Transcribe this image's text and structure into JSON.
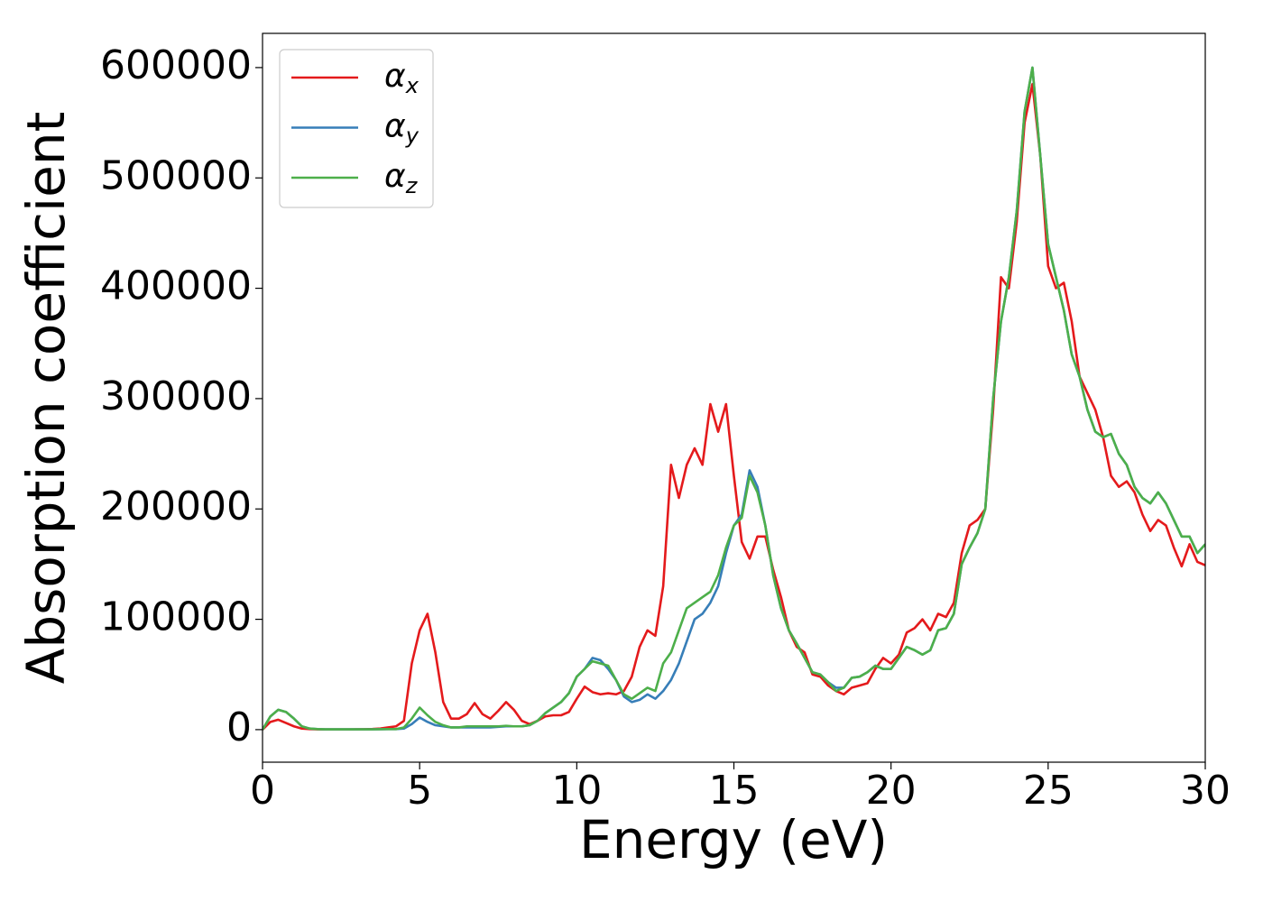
{
  "chart_data": {
    "type": "line",
    "xlabel": "Energy (eV)",
    "ylabel": "Absorption coefficient",
    "x": [
      0,
      0.25,
      0.5,
      0.75,
      1,
      1.25,
      1.5,
      1.75,
      2,
      2.25,
      2.5,
      2.75,
      3,
      3.25,
      3.5,
      3.75,
      4,
      4.25,
      4.5,
      4.75,
      5,
      5.25,
      5.5,
      5.75,
      6,
      6.25,
      6.5,
      6.75,
      7,
      7.25,
      7.5,
      7.75,
      8,
      8.25,
      8.5,
      8.75,
      9,
      9.25,
      9.5,
      9.75,
      10,
      10.25,
      10.5,
      10.75,
      11,
      11.25,
      11.5,
      11.75,
      12,
      12.25,
      12.5,
      12.75,
      13,
      13.25,
      13.5,
      13.75,
      14,
      14.25,
      14.5,
      14.75,
      15,
      15.25,
      15.5,
      15.75,
      16,
      16.25,
      16.5,
      16.75,
      17,
      17.25,
      17.5,
      17.75,
      18,
      18.25,
      18.5,
      18.75,
      19,
      19.25,
      19.5,
      19.75,
      20,
      20.25,
      20.5,
      20.75,
      21,
      21.25,
      21.5,
      21.75,
      22,
      22.25,
      22.5,
      22.75,
      23,
      23.25,
      23.5,
      23.75,
      24,
      24.25,
      24.5,
      24.75,
      25,
      25.25,
      25.5,
      25.75,
      26,
      26.25,
      26.5,
      26.75,
      27,
      27.25,
      27.5,
      27.75,
      28,
      28.25,
      28.5,
      28.75,
      29,
      29.25,
      29.5,
      29.75,
      30
    ],
    "series": [
      {
        "name": "αx",
        "color": "#e41a1c",
        "values": [
          0,
          7000,
          9000,
          6000,
          3000,
          1000,
          500,
          300,
          200,
          200,
          200,
          200,
          300,
          400,
          600,
          1000,
          2000,
          3000,
          8000,
          60000,
          90000,
          105000,
          70000,
          25000,
          10000,
          10000,
          14000,
          24000,
          14000,
          10000,
          17000,
          25000,
          18000,
          8000,
          5000,
          8000,
          12000,
          13000,
          13000,
          16000,
          28000,
          39000,
          34000,
          32000,
          33000,
          32000,
          35000,
          48000,
          75000,
          90000,
          85000,
          130000,
          240000,
          210000,
          240000,
          255000,
          240000,
          295000,
          270000,
          295000,
          230000,
          170000,
          155000,
          175000,
          175000,
          145000,
          120000,
          90000,
          75000,
          70000,
          50000,
          48000,
          40000,
          35000,
          32000,
          38000,
          40000,
          42000,
          55000,
          65000,
          60000,
          68000,
          88000,
          92000,
          100000,
          90000,
          105000,
          102000,
          115000,
          160000,
          185000,
          190000,
          200000,
          290000,
          410000,
          400000,
          460000,
          550000,
          585000,
          520000,
          420000,
          400000,
          405000,
          370000,
          320000,
          305000,
          290000,
          265000,
          230000,
          220000,
          225000,
          215000,
          195000,
          180000,
          190000,
          185000,
          165000,
          148000,
          168000,
          152000,
          149000
        ]
      },
      {
        "name": "αy",
        "color": "#377eb8",
        "values": [
          0,
          12000,
          18000,
          16000,
          10000,
          3000,
          1000,
          500,
          300,
          300,
          300,
          300,
          300,
          300,
          300,
          400,
          500,
          500,
          1000,
          5000,
          11000,
          7000,
          4000,
          3000,
          2000,
          2000,
          2000,
          2000,
          2000,
          2000,
          2500,
          3000,
          3000,
          3000,
          4000,
          8000,
          15000,
          20000,
          25000,
          33000,
          48000,
          55000,
          65000,
          63000,
          55000,
          45000,
          30000,
          25000,
          27000,
          32000,
          28000,
          35000,
          45000,
          60000,
          80000,
          100000,
          105000,
          115000,
          130000,
          160000,
          185000,
          195000,
          235000,
          220000,
          185000,
          140000,
          110000,
          90000,
          78000,
          65000,
          52000,
          50000,
          43000,
          38000,
          38000,
          47000,
          48000,
          52000,
          58000,
          55000,
          55000,
          65000,
          75000,
          72000,
          68000,
          72000,
          90000,
          92000,
          105000,
          150000,
          165000,
          178000,
          200000,
          300000,
          370000,
          410000,
          470000,
          560000,
          600000,
          520000,
          440000,
          410000,
          380000,
          340000,
          320000,
          290000,
          270000,
          265000,
          268000,
          250000,
          240000,
          220000,
          210000,
          205000,
          215000,
          205000,
          190000,
          175000,
          175000,
          160000,
          168000
        ]
      },
      {
        "name": "αz",
        "color": "#4daf4a",
        "values": [
          0,
          12000,
          18000,
          16000,
          10000,
          3000,
          1000,
          500,
          300,
          300,
          300,
          300,
          300,
          300,
          300,
          400,
          500,
          500,
          2000,
          10000,
          20000,
          13000,
          7000,
          4000,
          2000,
          2000,
          3000,
          3000,
          3000,
          3000,
          3000,
          3500,
          3000,
          3000,
          4000,
          8000,
          15000,
          20000,
          25000,
          33000,
          48000,
          55000,
          62000,
          60000,
          58000,
          45000,
          32000,
          28000,
          33000,
          38000,
          35000,
          60000,
          70000,
          90000,
          110000,
          115000,
          120000,
          125000,
          140000,
          165000,
          185000,
          192000,
          230000,
          215000,
          185000,
          140000,
          110000,
          90000,
          78000,
          65000,
          52000,
          50000,
          43000,
          35000,
          38000,
          47000,
          48000,
          52000,
          58000,
          55000,
          55000,
          65000,
          75000,
          72000,
          68000,
          72000,
          90000,
          92000,
          105000,
          150000,
          165000,
          178000,
          200000,
          300000,
          370000,
          410000,
          470000,
          560000,
          600000,
          520000,
          440000,
          410000,
          380000,
          340000,
          320000,
          290000,
          270000,
          265000,
          268000,
          250000,
          240000,
          220000,
          210000,
          205000,
          215000,
          205000,
          190000,
          175000,
          175000,
          160000,
          168000
        ]
      }
    ],
    "xlim": [
      0,
      30
    ],
    "xticks": [
      0,
      5,
      10,
      15,
      20,
      25,
      30
    ],
    "ylim": [
      -29500,
      631000
    ],
    "yticks": [
      0,
      100000,
      200000,
      300000,
      400000,
      500000,
      600000
    ],
    "grid": false,
    "legend": "upper left"
  }
}
